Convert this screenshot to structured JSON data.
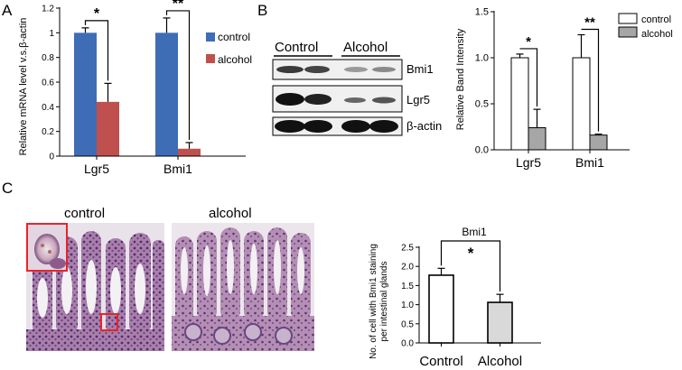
{
  "panel_letters": {
    "a": "A",
    "b": "B",
    "c": "C"
  },
  "blot": {
    "group_control": "Control",
    "group_alcohol": "Alcohol",
    "bands": [
      "Bmi1",
      "Lgr5",
      "β-actin"
    ]
  },
  "histology": {
    "control_label": "control",
    "alcohol_label": "alcohol",
    "box_color": "#e8242a"
  },
  "colors": {
    "control_blue": "#3e6db5",
    "alcohol_red": "#c0504d",
    "open_bar": "#ffffff",
    "grey_bar": "#a6a6a6",
    "light_bar": "#d9d9d9"
  },
  "chart_data": [
    {
      "type": "bar",
      "panel": "A",
      "ylabel": "Relative mRNA level v.s.β-actin",
      "categories": [
        "Lgr5",
        "Bmi1"
      ],
      "yticks": [
        "0",
        "0.2",
        "0.4",
        "0.6",
        "0.8",
        "1",
        "1.2"
      ],
      "ylim": [
        0,
        1.2
      ],
      "series": [
        {
          "name": "control",
          "values": [
            1.0,
            1.0
          ],
          "errors": [
            0.04,
            0.12
          ]
        },
        {
          "name": "alcohol",
          "values": [
            0.44,
            0.06
          ],
          "errors": [
            0.15,
            0.05
          ]
        }
      ],
      "significance": [
        "*",
        "**"
      ],
      "legend_position": "right"
    },
    {
      "type": "bar",
      "panel": "B",
      "ylabel": "Relative Band Intensity",
      "categories": [
        "Lgr5",
        "Bmi1"
      ],
      "yticks": [
        "0.0",
        "0.5",
        "1.0",
        "1.5"
      ],
      "ylim": [
        0,
        1.5
      ],
      "series": [
        {
          "name": "control",
          "values": [
            1.0,
            1.0
          ],
          "errors": [
            0.04,
            0.25
          ]
        },
        {
          "name": "alcohol",
          "values": [
            0.24,
            0.16
          ],
          "errors": [
            0.2,
            0.01
          ]
        }
      ],
      "significance": [
        "*",
        "**"
      ],
      "legend_position": "top-right"
    },
    {
      "type": "bar",
      "panel": "C",
      "title": "Bmi1",
      "ylabel": "No. of cell with Bmi1 staining per intestinal glands",
      "categories": [
        "Control",
        "Alcohol"
      ],
      "yticks": [
        "0.0",
        "0.5",
        "1.0",
        "1.5",
        "2.0",
        "2.5"
      ],
      "ylim": [
        0,
        2.5
      ],
      "values": [
        1.77,
        1.06
      ],
      "errors": [
        0.18,
        0.21
      ],
      "significance": [
        "*"
      ]
    }
  ]
}
